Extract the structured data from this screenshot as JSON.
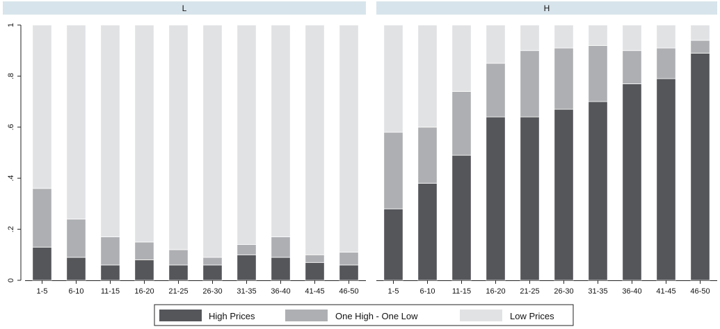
{
  "chart_data": {
    "type": "bar",
    "stacked": true,
    "categories": [
      "1-5",
      "6-10",
      "11-15",
      "16-20",
      "21-25",
      "26-30",
      "31-35",
      "36-40",
      "41-45",
      "46-50"
    ],
    "ylim": [
      0,
      1
    ],
    "yticks": [
      0,
      0.2,
      0.4,
      0.6,
      0.8,
      1
    ],
    "ytick_labels": [
      "0",
      ".2",
      ".4",
      ".6",
      ".8",
      "1"
    ],
    "grid": false,
    "legend_position": "bottom",
    "panels": [
      {
        "title": "L",
        "series": [
          {
            "name": "High Prices",
            "values": [
              0.13,
              0.09,
              0.06,
              0.08,
              0.06,
              0.06,
              0.1,
              0.09,
              0.07,
              0.06
            ]
          },
          {
            "name": "One High - One Low",
            "values": [
              0.23,
              0.15,
              0.11,
              0.07,
              0.06,
              0.03,
              0.04,
              0.08,
              0.03,
              0.05
            ]
          },
          {
            "name": "Low Prices",
            "values": [
              0.64,
              0.76,
              0.83,
              0.85,
              0.88,
              0.91,
              0.86,
              0.83,
              0.9,
              0.89
            ]
          }
        ]
      },
      {
        "title": "H",
        "series": [
          {
            "name": "High Prices",
            "values": [
              0.28,
              0.38,
              0.49,
              0.64,
              0.64,
              0.67,
              0.7,
              0.77,
              0.79,
              0.89
            ]
          },
          {
            "name": "One High - One Low",
            "values": [
              0.3,
              0.22,
              0.25,
              0.21,
              0.26,
              0.24,
              0.22,
              0.13,
              0.12,
              0.05
            ]
          },
          {
            "name": "Low Prices",
            "values": [
              0.42,
              0.4,
              0.26,
              0.15,
              0.1,
              0.09,
              0.08,
              0.1,
              0.09,
              0.06
            ]
          }
        ]
      }
    ],
    "legend": [
      "High Prices",
      "One High - One Low",
      "Low Prices"
    ],
    "colors": {
      "High Prices": "#55565a",
      "One High - One Low": "#aeafb2",
      "Low Prices": "#e1e2e4",
      "panel_header": "#d8e4ec"
    }
  }
}
